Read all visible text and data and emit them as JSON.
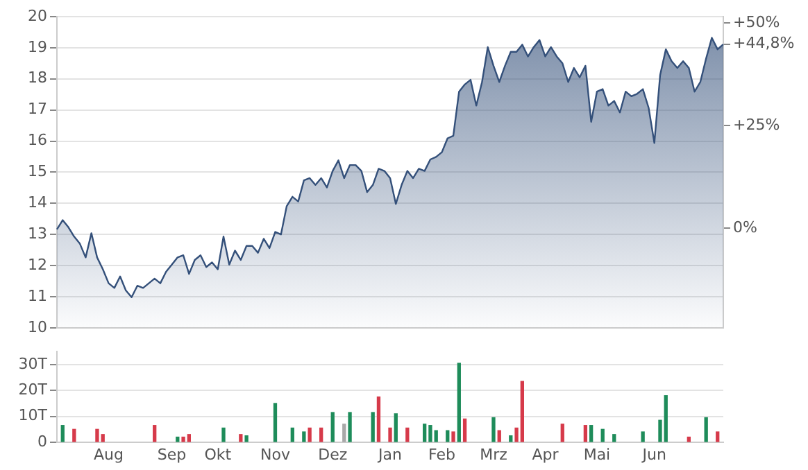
{
  "chart_data": [
    {
      "type": "area",
      "categories": [
        null,
        null,
        null,
        null,
        null,
        null,
        null,
        null,
        null,
        null,
        null,
        null,
        null,
        null,
        null,
        null,
        null,
        null,
        null,
        null,
        null,
        null,
        null,
        null,
        null,
        null,
        null,
        null,
        null,
        null,
        null,
        null,
        null,
        null,
        null,
        null,
        null,
        null,
        null,
        null,
        null,
        null,
        null,
        null,
        null,
        null,
        null,
        null,
        null,
        null,
        null,
        null,
        null,
        null,
        null,
        null,
        null,
        null,
        null,
        null,
        null,
        null,
        null,
        null,
        null,
        null,
        null,
        null,
        null,
        null,
        null,
        null,
        null,
        null,
        null,
        null,
        null,
        null,
        null,
        null,
        null,
        null,
        null,
        null,
        null,
        null,
        null,
        null,
        null,
        null,
        null,
        null,
        null,
        null,
        null,
        null,
        null,
        null,
        null,
        null,
        null,
        null,
        null,
        null,
        null,
        null,
        null,
        null,
        null,
        null,
        null,
        null,
        null,
        null,
        null,
        null,
        null
      ],
      "series": [
        {
          "color": "#34507a",
          "values": [
            13.16,
            13.46,
            13.23,
            12.93,
            12.7,
            12.26,
            13.04,
            12.26,
            11.88,
            11.43,
            11.28,
            11.65,
            11.2,
            10.98,
            11.35,
            11.28,
            11.43,
            11.58,
            11.43,
            11.8,
            12.03,
            12.26,
            12.33,
            11.73,
            12.18,
            12.33,
            11.95,
            12.1,
            11.88,
            12.93,
            12.03,
            12.48,
            12.18,
            12.63,
            12.63,
            12.41,
            12.86,
            12.56,
            13.08,
            13.0,
            13.91,
            14.21,
            14.06,
            14.74,
            14.81,
            14.59,
            14.81,
            14.51,
            15.04,
            15.38,
            14.81,
            15.23,
            15.23,
            15.04,
            14.36,
            14.59,
            15.11,
            15.04,
            14.81,
            13.98,
            14.59,
            15.04,
            14.81,
            15.11,
            15.04,
            15.41,
            15.49,
            15.64,
            16.09,
            16.17,
            17.59,
            17.82,
            17.97,
            17.14,
            17.9,
            19.02,
            18.42,
            17.9,
            18.42,
            18.87,
            18.87,
            19.1,
            18.72,
            19.02,
            19.25,
            18.72,
            19.02,
            18.72,
            18.5,
            17.9,
            18.35,
            18.05,
            18.42,
            16.62,
            17.59,
            17.67,
            17.14,
            17.29,
            16.92,
            17.59,
            17.44,
            17.52,
            17.67,
            17.07,
            15.94,
            18.12,
            18.95,
            18.57,
            18.35,
            18.57,
            18.35,
            17.59,
            17.9,
            18.65,
            19.32,
            18.95,
            19.11
          ]
        }
      ],
      "ylim": [
        10,
        20
      ],
      "yticks": [
        10,
        11,
        12,
        13,
        14,
        15,
        16,
        17,
        18,
        19,
        20
      ],
      "y2lim": [
        -24.2,
        51.5
      ],
      "y2ticks": [
        {
          "value": 0,
          "label": "0%"
        },
        {
          "value": 25,
          "label": "+25%"
        },
        {
          "value": 44.8,
          "label": "+44,8%"
        },
        {
          "value": 50,
          "label": "+50%"
        }
      ],
      "grid": "y",
      "tick_labels": "y"
    },
    {
      "type": "bar",
      "categories": [
        null,
        null,
        null,
        null,
        null,
        null,
        null,
        null,
        null,
        "Aug",
        null,
        null,
        null,
        null,
        null,
        null,
        null,
        null,
        null,
        null,
        "Sep",
        null,
        null,
        null,
        null,
        null,
        null,
        null,
        "Okt",
        null,
        null,
        null,
        null,
        null,
        null,
        null,
        null,
        null,
        "Nov",
        null,
        null,
        null,
        null,
        null,
        null,
        null,
        null,
        null,
        "Dez",
        null,
        null,
        null,
        null,
        null,
        null,
        null,
        null,
        null,
        "Jan",
        null,
        null,
        null,
        null,
        null,
        null,
        null,
        null,
        "Feb",
        null,
        null,
        null,
        null,
        null,
        null,
        null,
        null,
        "Mrz",
        null,
        null,
        null,
        null,
        null,
        null,
        null,
        null,
        "Apr",
        null,
        null,
        null,
        null,
        null,
        null,
        null,
        null,
        "Mai",
        null,
        null,
        null,
        null,
        null,
        null,
        null,
        null,
        null,
        "Jun",
        null,
        null,
        null,
        null,
        null,
        null,
        null,
        null,
        null,
        null,
        null,
        null
      ],
      "series": [
        {
          "color": "#1e8c5a",
          "values": [
            null,
            6.5,
            null,
            null,
            null,
            null,
            null,
            null,
            null,
            null,
            null,
            null,
            null,
            null,
            null,
            null,
            null,
            null,
            null,
            null,
            null,
            2,
            null,
            null,
            null,
            null,
            null,
            null,
            null,
            5.5,
            null,
            null,
            null,
            2.5,
            null,
            null,
            null,
            null,
            15,
            null,
            null,
            5.5,
            null,
            4,
            null,
            null,
            null,
            null,
            11.5,
            null,
            null,
            11.5,
            null,
            null,
            null,
            11.5,
            null,
            null,
            null,
            11,
            null,
            null,
            null,
            null,
            7,
            6.5,
            4.5,
            null,
            4.5,
            null,
            30.5,
            null,
            null,
            null,
            null,
            null,
            9.5,
            null,
            null,
            2.5,
            null,
            null,
            null,
            null,
            null,
            null,
            null,
            null,
            null,
            null,
            null,
            null,
            null,
            6.5,
            null,
            5,
            null,
            3,
            null,
            null,
            null,
            null,
            4,
            null,
            null,
            8.5,
            18,
            null,
            null,
            null,
            null,
            null,
            null,
            9.5,
            null,
            null,
            null
          ]
        },
        {
          "color": "#d63a4a",
          "values": [
            null,
            null,
            null,
            5,
            null,
            null,
            null,
            5,
            3,
            null,
            null,
            null,
            null,
            null,
            null,
            null,
            null,
            6.5,
            null,
            null,
            null,
            null,
            2,
            3,
            null,
            null,
            null,
            null,
            null,
            null,
            null,
            null,
            3,
            null,
            null,
            null,
            null,
            null,
            null,
            null,
            null,
            null,
            null,
            null,
            5.5,
            null,
            5.5,
            null,
            null,
            null,
            null,
            null,
            null,
            null,
            null,
            null,
            17.5,
            null,
            5.5,
            null,
            null,
            5.5,
            null,
            null,
            null,
            null,
            null,
            null,
            null,
            4,
            null,
            9,
            null,
            null,
            null,
            null,
            null,
            4.5,
            null,
            null,
            5.5,
            23.5,
            null,
            null,
            null,
            null,
            null,
            null,
            7,
            null,
            null,
            null,
            6.5,
            null,
            null,
            null,
            null,
            null,
            null,
            null,
            null,
            null,
            null,
            null,
            null,
            null,
            null,
            null,
            null,
            null,
            2,
            null,
            null,
            null,
            null,
            4,
            null
          ]
        },
        {
          "color": "#a8a8a8",
          "values": [
            null,
            null,
            null,
            null,
            null,
            null,
            null,
            null,
            null,
            null,
            null,
            null,
            null,
            null,
            null,
            null,
            null,
            null,
            null,
            null,
            null,
            null,
            null,
            null,
            null,
            null,
            null,
            null,
            null,
            null,
            null,
            null,
            null,
            null,
            null,
            null,
            null,
            null,
            null,
            null,
            null,
            null,
            null,
            null,
            null,
            null,
            null,
            null,
            null,
            null,
            7,
            null,
            null,
            null,
            null,
            null,
            null,
            null,
            null,
            null,
            null,
            null,
            null,
            null,
            null,
            null,
            null,
            null,
            null,
            null,
            null,
            null,
            null,
            null,
            null,
            null,
            null,
            null,
            null,
            null,
            null,
            null,
            null,
            null,
            null,
            null,
            null,
            null,
            null,
            null,
            null,
            null,
            null,
            null,
            null,
            null,
            null,
            null,
            null,
            null,
            null,
            null,
            null,
            null,
            null,
            null,
            null,
            null,
            null,
            null,
            null,
            null,
            null,
            null,
            null,
            null,
            null
          ]
        }
      ],
      "ylim": [
        0,
        35
      ],
      "yticks": [
        0,
        {
          "value": 10,
          "label": "10T"
        },
        {
          "value": 20,
          "label": "20T"
        },
        {
          "value": 30,
          "label": "30T"
        }
      ],
      "grid": "y"
    }
  ]
}
